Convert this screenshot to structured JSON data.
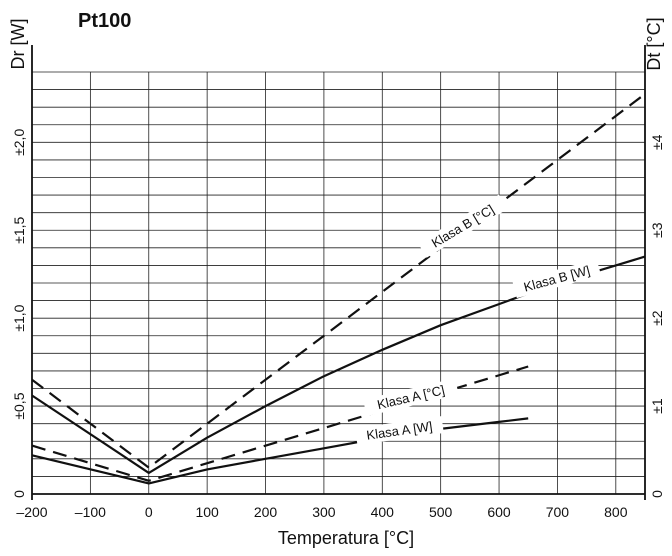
{
  "chart_data": {
    "type": "line",
    "title": "Pt100",
    "xlabel": "Temperatura [°C]",
    "ylabel_left": "Dr [W]",
    "ylabel_right": "Dt [°C]",
    "xlim": [
      -200,
      850
    ],
    "ylim_left": [
      0,
      2.4
    ],
    "ylim_right": [
      0,
      4.8
    ],
    "x_ticks": [
      -200,
      -100,
      0,
      100,
      200,
      300,
      400,
      500,
      600,
      700,
      800
    ],
    "x_tick_labels": [
      "–200",
      "–100",
      "0",
      "100",
      "200",
      "300",
      "400",
      "500",
      "600",
      "700",
      "800"
    ],
    "y_left_ticks": [
      0,
      0.5,
      1.0,
      1.5,
      2.0
    ],
    "y_left_tick_labels": [
      "0",
      "±0,5",
      "±1,0",
      "±1,5",
      "±2,0"
    ],
    "y_right_ticks": [
      0,
      1,
      2,
      3,
      4
    ],
    "y_right_tick_labels": [
      "0",
      "±1",
      "±2",
      "±3",
      "±4"
    ],
    "grid": true,
    "series": [
      {
        "name": "Klasa B [°C]",
        "axis": "right",
        "style": "dashed",
        "x": [
          -200,
          0,
          850
        ],
        "y": [
          1.3,
          0.3,
          4.55
        ]
      },
      {
        "name": "Klasa B [W]",
        "axis": "left",
        "style": "solid",
        "x": [
          -200,
          0,
          100,
          200,
          300,
          400,
          500,
          600,
          700,
          800,
          850
        ],
        "y": [
          0.56,
          0.12,
          0.32,
          0.5,
          0.67,
          0.82,
          0.96,
          1.08,
          1.2,
          1.3,
          1.35
        ]
      },
      {
        "name": "Klasa A [°C]",
        "axis": "right",
        "style": "dashed",
        "x": [
          -200,
          0,
          650
        ],
        "y": [
          0.55,
          0.15,
          1.45
        ]
      },
      {
        "name": "Klasa A [W]",
        "axis": "left",
        "style": "solid",
        "x": [
          -200,
          0,
          100,
          200,
          300,
          400,
          500,
          600,
          650
        ],
        "y": [
          0.22,
          0.06,
          0.14,
          0.2,
          0.26,
          0.32,
          0.37,
          0.41,
          0.43
        ]
      }
    ]
  }
}
